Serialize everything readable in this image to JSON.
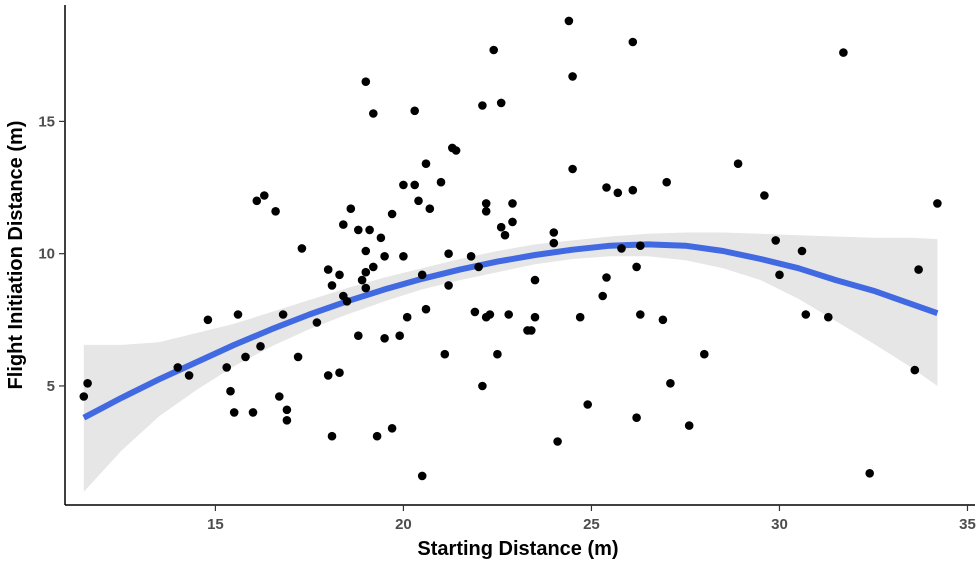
{
  "colors": {
    "points": "#000000",
    "fit_line": "#4169e1",
    "confidence_band": "#e6e6e6",
    "axis": "#000000",
    "tick_labels": "#4d4d4d"
  },
  "chart_data": {
    "type": "scatter",
    "xlabel": "Starting Distance (m)",
    "ylabel": "Flight Initiation Distance (m)",
    "xlim": [
      11.0,
      35.2
    ],
    "ylim": [
      0.5,
      19.4
    ],
    "x_ticks": [
      15,
      20,
      25,
      30,
      35
    ],
    "y_ticks": [
      5,
      10,
      15
    ],
    "x_tick_labels": [
      "15",
      "20",
      "25",
      "30",
      "35"
    ],
    "y_tick_labels": [
      "5",
      "10",
      "15"
    ],
    "grid": false,
    "legend": "none",
    "points": [
      [
        11.5,
        4.6
      ],
      [
        11.6,
        5.1
      ],
      [
        14.0,
        5.7
      ],
      [
        14.3,
        5.4
      ],
      [
        14.8,
        7.5
      ],
      [
        15.3,
        5.7
      ],
      [
        15.4,
        4.8
      ],
      [
        15.5,
        4.0
      ],
      [
        15.6,
        7.7
      ],
      [
        15.8,
        6.1
      ],
      [
        16.0,
        4.0
      ],
      [
        16.1,
        12.0
      ],
      [
        16.2,
        6.5
      ],
      [
        16.3,
        12.2
      ],
      [
        16.6,
        11.6
      ],
      [
        16.7,
        4.6
      ],
      [
        16.8,
        7.7
      ],
      [
        16.9,
        4.1
      ],
      [
        16.9,
        3.7
      ],
      [
        17.2,
        6.1
      ],
      [
        17.3,
        10.2
      ],
      [
        17.7,
        7.4
      ],
      [
        18.0,
        9.4
      ],
      [
        18.0,
        5.4
      ],
      [
        18.1,
        8.8
      ],
      [
        18.1,
        3.1
      ],
      [
        18.3,
        9.2
      ],
      [
        18.3,
        5.5
      ],
      [
        18.4,
        11.1
      ],
      [
        18.4,
        8.4
      ],
      [
        18.5,
        8.2
      ],
      [
        18.6,
        11.7
      ],
      [
        18.8,
        10.9
      ],
      [
        18.8,
        6.9
      ],
      [
        18.9,
        9.0
      ],
      [
        19.0,
        16.5
      ],
      [
        19.0,
        10.1
      ],
      [
        19.0,
        9.3
      ],
      [
        19.0,
        8.7
      ],
      [
        19.1,
        10.9
      ],
      [
        19.2,
        15.3
      ],
      [
        19.2,
        9.5
      ],
      [
        19.3,
        3.1
      ],
      [
        19.4,
        10.6
      ],
      [
        19.5,
        9.9
      ],
      [
        19.5,
        6.8
      ],
      [
        19.7,
        11.5
      ],
      [
        19.7,
        3.4
      ],
      [
        19.9,
        6.9
      ],
      [
        20.0,
        12.6
      ],
      [
        20.0,
        9.9
      ],
      [
        20.1,
        7.6
      ],
      [
        20.3,
        15.4
      ],
      [
        20.3,
        12.6
      ],
      [
        20.4,
        12.0
      ],
      [
        20.5,
        9.2
      ],
      [
        20.5,
        1.6
      ],
      [
        20.6,
        13.4
      ],
      [
        20.6,
        7.9
      ],
      [
        20.7,
        11.7
      ],
      [
        21.0,
        12.7
      ],
      [
        21.1,
        6.2
      ],
      [
        21.2,
        10.0
      ],
      [
        21.2,
        8.8
      ],
      [
        21.3,
        14.0
      ],
      [
        21.4,
        13.9
      ],
      [
        21.8,
        9.9
      ],
      [
        21.9,
        7.8
      ],
      [
        22.0,
        9.5
      ],
      [
        22.1,
        15.6
      ],
      [
        22.1,
        5.0
      ],
      [
        22.2,
        11.9
      ],
      [
        22.2,
        11.6
      ],
      [
        22.2,
        7.6
      ],
      [
        22.3,
        7.7
      ],
      [
        22.4,
        17.7
      ],
      [
        22.5,
        6.2
      ],
      [
        22.6,
        15.7
      ],
      [
        22.6,
        11.0
      ],
      [
        22.7,
        10.7
      ],
      [
        22.8,
        7.7
      ],
      [
        22.9,
        11.9
      ],
      [
        22.9,
        11.2
      ],
      [
        23.3,
        7.1
      ],
      [
        23.4,
        7.1
      ],
      [
        23.5,
        9.0
      ],
      [
        23.5,
        7.6
      ],
      [
        24.0,
        10.8
      ],
      [
        24.0,
        10.4
      ],
      [
        24.1,
        2.9
      ],
      [
        24.4,
        18.8
      ],
      [
        24.5,
        16.7
      ],
      [
        24.5,
        13.2
      ],
      [
        24.7,
        7.6
      ],
      [
        24.9,
        4.3
      ],
      [
        25.3,
        8.4
      ],
      [
        25.4,
        12.5
      ],
      [
        25.4,
        9.1
      ],
      [
        25.7,
        12.3
      ],
      [
        25.8,
        10.2
      ],
      [
        26.1,
        18.0
      ],
      [
        26.1,
        12.4
      ],
      [
        26.2,
        9.5
      ],
      [
        26.2,
        3.8
      ],
      [
        26.3,
        10.3
      ],
      [
        26.3,
        7.7
      ],
      [
        26.9,
        7.5
      ],
      [
        27.0,
        12.7
      ],
      [
        27.1,
        5.1
      ],
      [
        27.6,
        3.5
      ],
      [
        28.0,
        6.2
      ],
      [
        28.9,
        13.4
      ],
      [
        29.6,
        12.2
      ],
      [
        29.9,
        10.5
      ],
      [
        30.0,
        9.2
      ],
      [
        30.6,
        10.1
      ],
      [
        30.7,
        7.7
      ],
      [
        31.3,
        7.6
      ],
      [
        31.7,
        17.6
      ],
      [
        32.4,
        1.7
      ],
      [
        33.6,
        5.6
      ],
      [
        33.7,
        9.4
      ],
      [
        34.2,
        11.9
      ]
    ],
    "fit": {
      "method": "quadratic",
      "x": [
        11.5,
        12.5,
        13.5,
        14.5,
        15.5,
        16.5,
        17.5,
        18.5,
        19.5,
        20.5,
        21.5,
        22.5,
        23.5,
        24.5,
        25.5,
        26.5,
        27.5,
        28.5,
        29.5,
        30.5,
        31.5,
        32.5,
        33.5,
        34.2
      ],
      "y": [
        3.8,
        4.55,
        5.25,
        5.9,
        6.55,
        7.15,
        7.7,
        8.2,
        8.65,
        9.05,
        9.4,
        9.7,
        9.95,
        10.15,
        10.3,
        10.35,
        10.3,
        10.1,
        9.8,
        9.45,
        9.0,
        8.6,
        8.1,
        7.75
      ],
      "lower": [
        1.0,
        2.55,
        3.85,
        4.85,
        5.75,
        6.5,
        7.15,
        7.7,
        8.2,
        8.65,
        9.0,
        9.3,
        9.6,
        9.8,
        9.9,
        9.9,
        9.75,
        9.45,
        9.0,
        8.3,
        7.45,
        6.6,
        5.7,
        5.0
      ],
      "upper": [
        6.55,
        6.55,
        6.65,
        7.0,
        7.35,
        7.8,
        8.25,
        8.7,
        9.1,
        9.45,
        9.8,
        10.1,
        10.35,
        10.5,
        10.65,
        10.75,
        10.8,
        10.8,
        10.75,
        10.7,
        10.65,
        10.6,
        10.6,
        10.55
      ]
    }
  }
}
